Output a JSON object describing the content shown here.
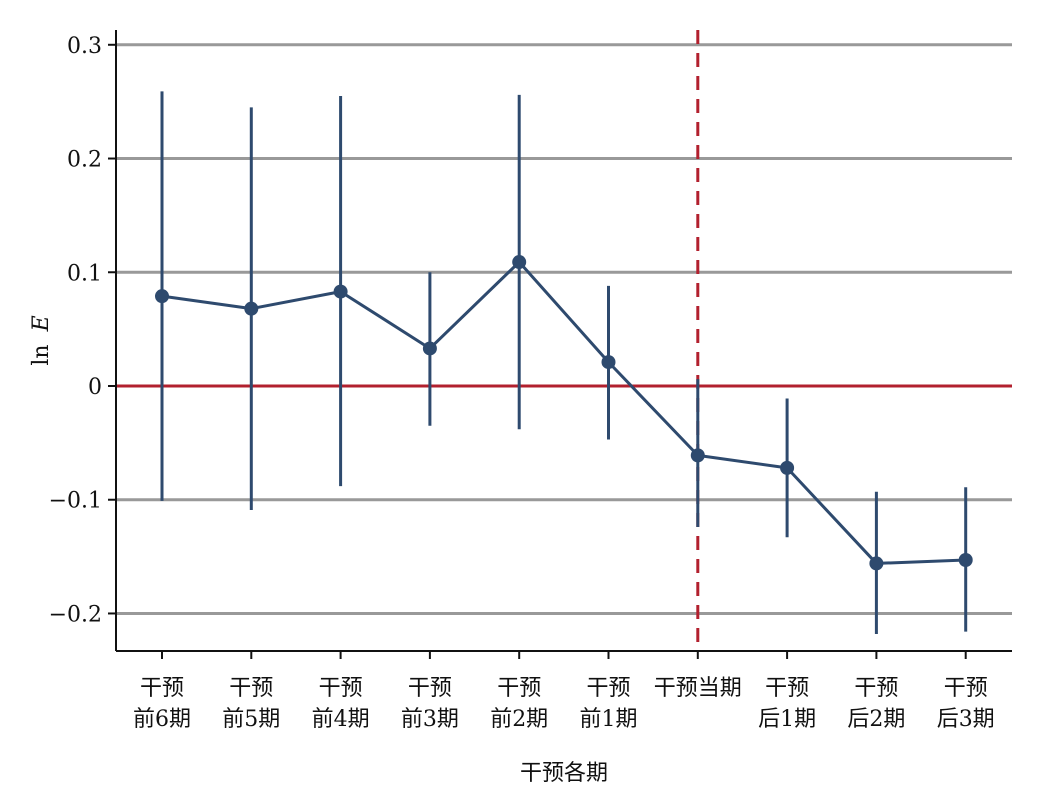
{
  "chart_data": {
    "type": "line",
    "title": "",
    "xlabel": "干预各期",
    "ylabel_prefix": "ln",
    "ylabel_var": "E",
    "categories": [
      [
        "干预",
        "前6期"
      ],
      [
        "干预",
        "前5期"
      ],
      [
        "干预",
        "前4期"
      ],
      [
        "干预",
        "前3期"
      ],
      [
        "干预",
        "前2期"
      ],
      [
        "干预",
        "前1期"
      ],
      [
        "干预当期"
      ],
      [
        "干预",
        "后1期"
      ],
      [
        "干预",
        "后2期"
      ],
      [
        "干预",
        "后3期"
      ]
    ],
    "series": [
      {
        "values": [
          0.079,
          0.068,
          0.083,
          0.033,
          0.109,
          0.021,
          -0.061,
          -0.072,
          -0.156,
          -0.153
        ],
        "ci_low": [
          -0.101,
          -0.109,
          -0.088,
          -0.035,
          -0.038,
          -0.047,
          -0.124,
          -0.133,
          -0.218,
          -0.216
        ],
        "ci_high": [
          0.259,
          0.245,
          0.255,
          0.1,
          0.256,
          0.088,
          0.006,
          -0.011,
          -0.093,
          -0.089
        ]
      }
    ],
    "ylim": [
      -0.233,
      0.313
    ],
    "yticks": [
      0.3,
      0.2,
      0.1,
      0,
      -0.1,
      -0.2
    ],
    "ytick_labels": [
      "0.3",
      "0.2",
      "0.1",
      "0",
      "−0.1",
      "−0.2"
    ],
    "zero_line": 0,
    "vline_category_index": 6,
    "grid": true,
    "colors": {
      "series": "#2e4a6e",
      "zero_line": "#b2202e",
      "vline": "#b2202e",
      "grid": "#999999",
      "axis": "#111111"
    }
  }
}
